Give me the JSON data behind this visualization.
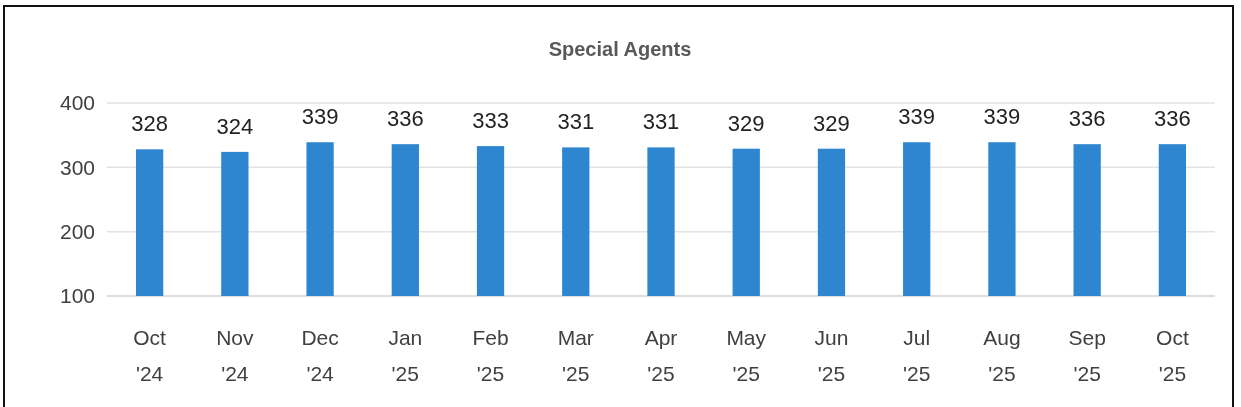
{
  "chart_data": {
    "type": "bar",
    "title": "Special Agents",
    "categories": [
      "Oct '24",
      "Nov '24",
      "Dec '24",
      "Jan '25",
      "Feb '25",
      "Mar '25",
      "Apr '25",
      "May '25",
      "Jun '25",
      "Jul '25",
      "Aug '25",
      "Sep '25",
      "Oct '25"
    ],
    "values": [
      328,
      324,
      339,
      336,
      333,
      331,
      331,
      329,
      329,
      339,
      339,
      336,
      336
    ],
    "color": "#2e86d1",
    "ylim": [
      100,
      400
    ],
    "yticks": [
      100,
      200,
      300,
      400
    ],
    "grid": "y",
    "data_labels": true
  }
}
